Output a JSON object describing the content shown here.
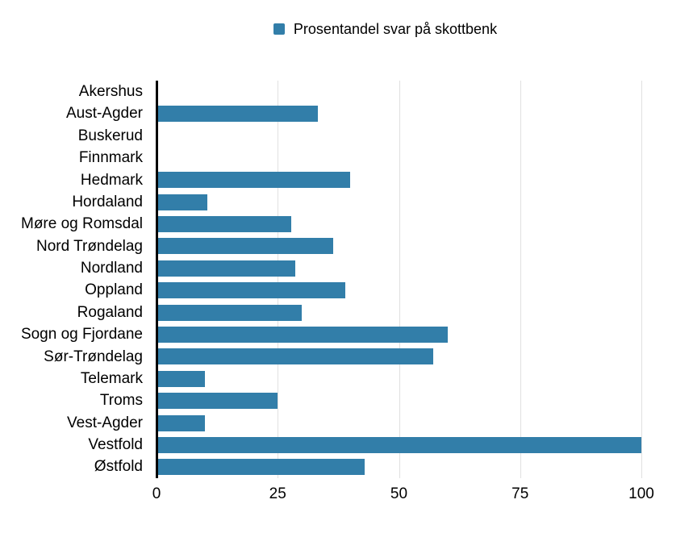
{
  "chart_data": {
    "type": "bar",
    "orientation": "horizontal",
    "title": "",
    "legend_label": "Prosentandel svar på skottbenk",
    "legend_position": "top",
    "categories": [
      "Akershus",
      "Aust-Agder",
      "Buskerud",
      "Finnmark",
      "Hedmark",
      "Hordaland",
      "Møre og Romsdal",
      "Nord Trøndelag",
      "Nordland",
      "Oppland",
      "Rogaland",
      "Sogn og Fjordane",
      "Sør-Trøndelag",
      "Telemark",
      "Troms",
      "Vest-Agder",
      "Vestfold",
      "Østfold"
    ],
    "values": [
      0,
      33.3,
      0,
      0,
      40,
      10.5,
      27.8,
      36.4,
      28.6,
      38.9,
      30,
      60,
      57.1,
      10,
      25,
      10,
      100,
      42.9
    ],
    "xlabel": "",
    "ylabel": "",
    "xlim": [
      0,
      100
    ],
    "x_ticks": [
      0,
      25,
      50,
      75,
      100
    ],
    "grid": true,
    "colors": {
      "bar": "#327EA9",
      "axis": "#000000",
      "gridline": "#E0E0E0",
      "text": "#000000",
      "background": "#FFFFFF"
    }
  }
}
